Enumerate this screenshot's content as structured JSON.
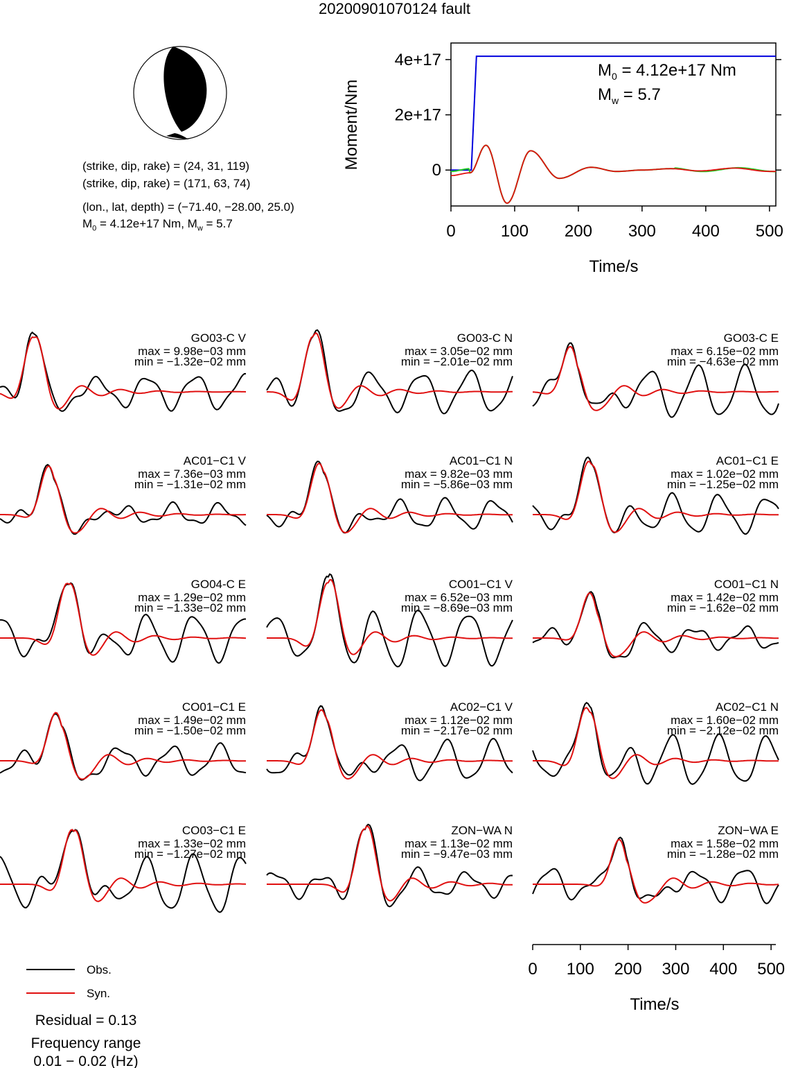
{
  "title": "20200901070124 fault",
  "solution": {
    "plane1": "(strike, dip, rake) = (24, 31, 119)",
    "plane2": "(strike, dip, rake) = (171, 63, 74)",
    "location": "(lon., lat, depth) = (−71.40, −28.00, 25.0)",
    "moment_prefix": "M",
    "moment_sub": "0",
    "moment_mid": " = 4.12e+17 Nm, M",
    "mw_sub": "w",
    "mw_suffix": " = 5.7"
  },
  "moment_plot": {
    "ylabel": "Moment/Nm",
    "xlabel": "Time/s",
    "ytick_labels": [
      "0",
      "2e+17",
      "4e+17"
    ],
    "xtick_labels": [
      "0",
      "100",
      "200",
      "300",
      "400",
      "500"
    ],
    "annot_m0_prefix": "M",
    "annot_m0_sub": "0",
    "annot_m0_value": " = 4.12e+17 Nm",
    "annot_mw_prefix": "M",
    "annot_mw_sub": "w",
    "annot_mw_value": " = 5.7"
  },
  "wave_axis": {
    "xlabel": "Time/s",
    "xtick_labels": [
      "0",
      "100",
      "200",
      "300",
      "400",
      "500"
    ]
  },
  "legend": {
    "obs_label": "Obs.",
    "syn_label": "Syn.",
    "residual": "Residual = 0.13",
    "freq_title": "Frequency range",
    "freq_value": "0.01 − 0.02 (Hz)"
  },
  "colors": {
    "observed": "#000000",
    "synthetic": "#e01010",
    "cumulative_moment": "#0000dd",
    "moment_rate_alt": "#22cc22"
  },
  "stations": [
    {
      "name": "GO03-C V",
      "max": "max = 9.98e−03 mm",
      "min": "min = −1.32e−02 mm"
    },
    {
      "name": "GO03-C N",
      "max": "max = 3.05e−02 mm",
      "min": "min = −2.01e−02 mm"
    },
    {
      "name": "GO03-C E",
      "max": "max = 6.15e−02 mm",
      "min": "min = −4.63e−02 mm"
    },
    {
      "name": "AC01−C1 V",
      "max": "max = 7.36e−03 mm",
      "min": "min = −1.31e−02 mm"
    },
    {
      "name": "AC01−C1 N",
      "max": "max = 9.82e−03 mm",
      "min": "min = −5.86e−03 mm"
    },
    {
      "name": "AC01−C1 E",
      "max": "max = 1.02e−02 mm",
      "min": "min = −1.25e−02 mm"
    },
    {
      "name": "GO04-C E",
      "max": "max = 1.29e−02 mm",
      "min": "min = −1.33e−02 mm"
    },
    {
      "name": "CO01−C1 V",
      "max": "max = 6.52e−03 mm",
      "min": "min = −8.69e−03 mm"
    },
    {
      "name": "CO01−C1 N",
      "max": "max = 1.42e−02 mm",
      "min": "min = −1.62e−02 mm"
    },
    {
      "name": "CO01−C1 E",
      "max": "max = 1.49e−02 mm",
      "min": "min = −1.50e−02 mm"
    },
    {
      "name": "AC02−C1 V",
      "max": "max = 1.12e−02 mm",
      "min": "min = −2.17e−02 mm"
    },
    {
      "name": "AC02−C1 N",
      "max": "max = 1.60e−02 mm",
      "min": "min = −2.12e−02 mm"
    },
    {
      "name": "CO03−C1 E",
      "max": "max = 1.33e−02 mm",
      "min": "min = −1.27e−02 mm"
    },
    {
      "name": "ZON−WA N",
      "max": "max = 1.13e−02 mm",
      "min": "min = −9.47e−03 mm"
    },
    {
      "name": "ZON−WA E",
      "max": "max = 1.58e−02 mm",
      "min": "min = −1.28e−02 mm"
    }
  ],
  "chart_data": [
    {
      "type": "line",
      "xlabel": "Time/s",
      "ylabel": "Moment/Nm",
      "xlim": [
        0,
        510
      ],
      "ylim": [
        -1.3e+17,
        4.6e+17
      ],
      "series": [
        {
          "x": [
            0,
            32,
            40,
            510
          ],
          "values": [
            0,
            0,
            4.12e+17,
            4.12e+17
          ]
        },
        {
          "x": [
            0,
            30,
            55,
            88,
            125,
            170,
            220,
            260,
            300,
            345,
            390,
            445,
            500,
            510
          ],
          "values": [
            -2e+16,
            -1e+16,
            9e+16,
            -1.2e+17,
            7e+16,
            -3e+16,
            1e+16,
            -5000000000000000.0,
            0,
            5000000000000000.0,
            -3000000000000000.0,
            7000000000000000.0,
            -5000000000000000.0,
            -5000000000000000.0
          ]
        }
      ]
    },
    {
      "type": "line",
      "xlabel": "Time/s",
      "xlim": [
        0,
        510
      ],
      "series": [
        {
          "name": "Obs."
        },
        {
          "name": "Syn."
        }
      ]
    }
  ]
}
